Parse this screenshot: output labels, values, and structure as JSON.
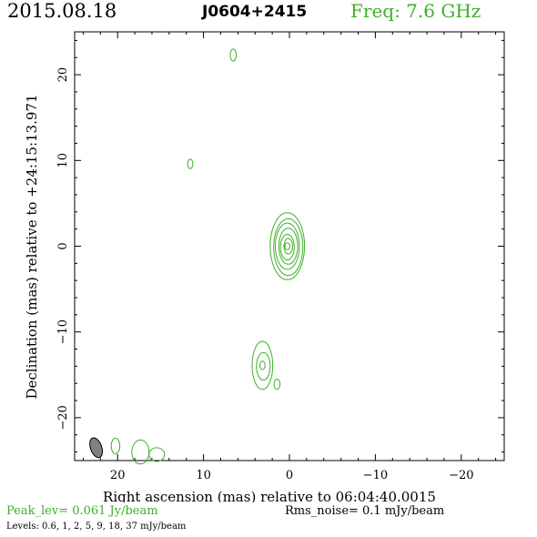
{
  "header": {
    "date": "2015.08.18",
    "source": "J0604+2415",
    "freq": "Freq: 7.6 GHz"
  },
  "footer": {
    "peak": "Peak_lev=  0.061 Jy/beam",
    "rms": "Rms_noise=  0.1 mJy/beam",
    "levels": "Levels: 0.6,   1,   2,   5,   9,   18,   37 mJy/beam"
  },
  "colors": {
    "contour": "#3fae2a",
    "beam_fill": "#808080",
    "text": "#000000"
  },
  "chart_data": {
    "type": "contour",
    "xlabel": "Right ascension (mas) relative to 06:04:40.0015",
    "ylabel": "Declination (mas) relative to +24:15:13.971",
    "xlim": [
      25,
      -25
    ],
    "ylim": [
      -25,
      25
    ],
    "xticks": [
      20,
      10,
      0,
      -10,
      -20
    ],
    "xtick_labels": [
      "20",
      "10",
      "0",
      "−10",
      "−20"
    ],
    "yticks": [
      -20,
      -10,
      0,
      10,
      20
    ],
    "ytick_labels": [
      "−20",
      "−10",
      "0",
      "10",
      "20"
    ],
    "levels_mJy": [
      0.6,
      1,
      2,
      5,
      9,
      18,
      37
    ],
    "peak_Jy_per_beam": 0.061,
    "rms_mJy_per_beam": 0.1,
    "beam": {
      "x": 22.5,
      "y": -23.5,
      "major": 2.4,
      "minor": 1.3,
      "pa_deg": 20
    },
    "components": [
      {
        "id": "core",
        "x": 0.2,
        "y": 0,
        "rings": [
          {
            "rx": 2.0,
            "ry": 3.9
          },
          {
            "rx": 1.7,
            "ry": 3.3
          },
          {
            "rx": 1.4,
            "ry": 2.7
          },
          {
            "rx": 1.1,
            "ry": 2.1
          },
          {
            "rx": 0.8,
            "ry": 1.5
          },
          {
            "rx": 0.5,
            "ry": 0.9
          },
          {
            "rx": 0.3,
            "ry": 0.4
          }
        ]
      },
      {
        "id": "south-knot",
        "x": 3.1,
        "y": -13.9,
        "rings": [
          {
            "rx": 1.2,
            "ry": 2.8
          },
          {
            "rx": 0.8,
            "ry": 1.6
          },
          {
            "rx": 0.3,
            "ry": 0.5
          }
        ]
      },
      {
        "id": "south-blob",
        "x": 1.4,
        "y": -16.1,
        "rings": [
          {
            "rx": 0.35,
            "ry": 0.6
          }
        ]
      },
      {
        "id": "north-blob-1",
        "x": 6.5,
        "y": 22.3,
        "rings": [
          {
            "rx": 0.35,
            "ry": 0.7
          }
        ]
      },
      {
        "id": "north-blob-2",
        "x": 11.5,
        "y": 9.6,
        "rings": [
          {
            "rx": 0.3,
            "ry": 0.55
          }
        ]
      },
      {
        "id": "edge-blob-1",
        "x": 20.2,
        "y": -23.3,
        "rings": [
          {
            "rx": 0.5,
            "ry": 0.9
          }
        ]
      },
      {
        "id": "edge-blob-2",
        "x": 17.3,
        "y": -24.0,
        "rings": [
          {
            "rx": 1.0,
            "ry": 1.4
          }
        ]
      },
      {
        "id": "edge-blob-3",
        "x": 15.4,
        "y": -24.3,
        "rings": [
          {
            "rx": 0.9,
            "ry": 0.8
          }
        ]
      }
    ]
  }
}
